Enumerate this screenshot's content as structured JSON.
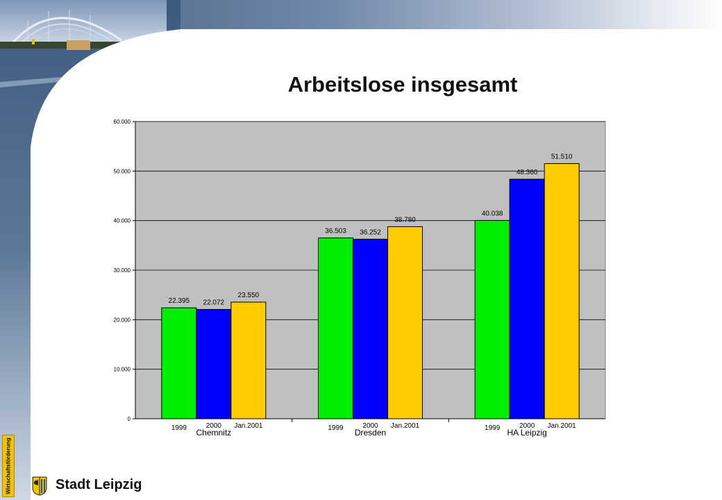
{
  "slide": {
    "title": "Arbeitslose insgesamt",
    "badge_text": "Wirtschaftsförderung",
    "city_name": "Stadt Leipzig"
  },
  "colors": {
    "series_1999": "#00ee00",
    "series_2000": "#0000ff",
    "series_jan2001": "#ffcc00",
    "plot_background": "#c0c0c0",
    "badge": "#f2c200"
  },
  "icons": {
    "crest": "leipzig-crest-icon"
  },
  "chart_data": {
    "type": "bar",
    "title": "Arbeitslose insgesamt",
    "categories": [
      "Chemnitz",
      "Dresden",
      "HA Leipzig"
    ],
    "bar_labels": [
      [
        "1999",
        "2000",
        "Jan.2001"
      ],
      [
        "1999",
        "2000",
        "Jan.2001"
      ],
      [
        "1999",
        "2000",
        "Jan.2001"
      ]
    ],
    "series": [
      {
        "values": [
          22395,
          36503,
          40038
        ],
        "labels": [
          "22.395",
          "36.503",
          "40.038"
        ],
        "color": "#00ee00"
      },
      {
        "values": [
          22072,
          36252,
          48360
        ],
        "labels": [
          "22.072",
          "36.252",
          "48.360"
        ],
        "color": "#0000ff"
      },
      {
        "values": [
          23550,
          38780,
          51510
        ],
        "labels": [
          "23.550",
          "38.780",
          "51.510"
        ],
        "color": "#ffcc00"
      }
    ],
    "ylim": [
      0,
      60000
    ],
    "yticks": [
      0,
      10000,
      20000,
      30000,
      40000,
      50000,
      60000
    ],
    "ytick_labels": [
      "0",
      "10.000",
      "20.000",
      "30.000",
      "40.000",
      "50.000",
      "60.000"
    ],
    "grid": true,
    "legend": "none"
  }
}
